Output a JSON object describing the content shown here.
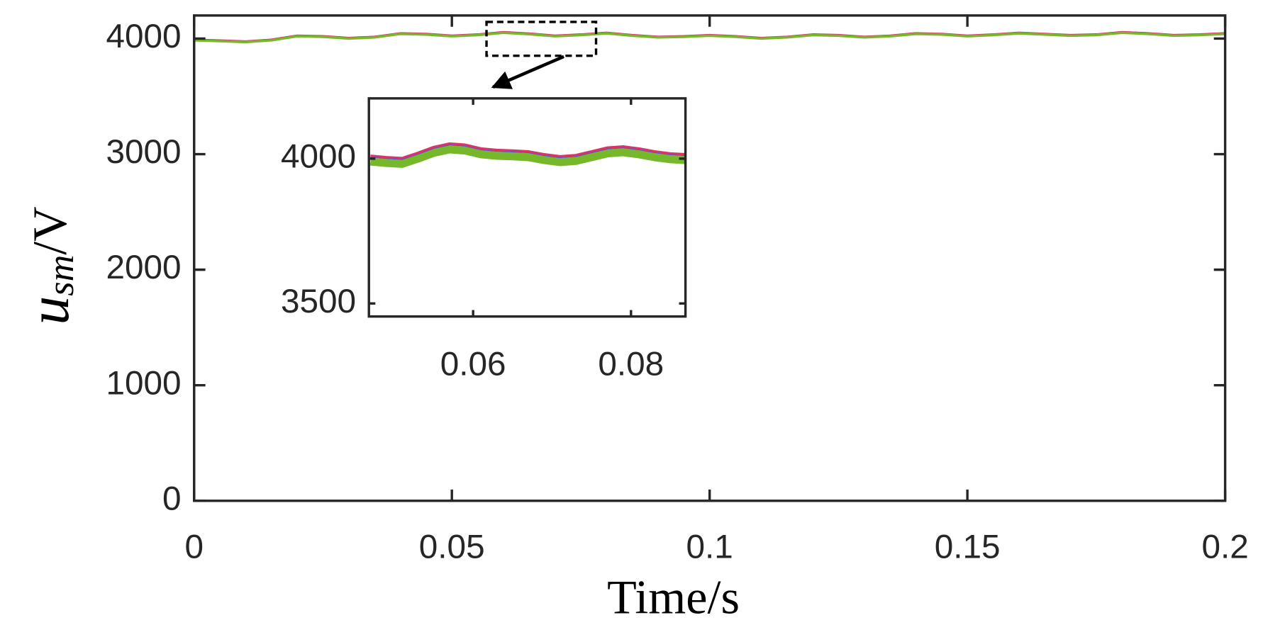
{
  "chart_data": [
    {
      "type": "line",
      "xlabel": "Time/s",
      "ylabel": {
        "main": "u",
        "sub": "sm",
        "suffix": "/V"
      },
      "xlim": [
        0,
        0.2
      ],
      "ylim": [
        0,
        4200
      ],
      "xticks": [
        0,
        0.05,
        0.1,
        0.15,
        0.2
      ],
      "yticks": [
        0,
        1000,
        2000,
        3000,
        4000
      ],
      "x": [
        0,
        0.005,
        0.01,
        0.015,
        0.02,
        0.025,
        0.03,
        0.035,
        0.04,
        0.045,
        0.05,
        0.055,
        0.06,
        0.065,
        0.07,
        0.075,
        0.08,
        0.085,
        0.09,
        0.095,
        0.1,
        0.105,
        0.11,
        0.115,
        0.12,
        0.125,
        0.13,
        0.135,
        0.14,
        0.145,
        0.15,
        0.155,
        0.16,
        0.165,
        0.17,
        0.175,
        0.18,
        0.185,
        0.19,
        0.195,
        0.2
      ],
      "series": [
        {
          "color": "#3b5bd9",
          "values": [
            3988,
            3981,
            3973,
            3988,
            4023,
            4018,
            4003,
            4013,
            4043,
            4038,
            4023,
            4033,
            4053,
            4041,
            4023,
            4033,
            4048,
            4028,
            4013,
            4018,
            4028,
            4018,
            4003,
            4013,
            4033,
            4028,
            4013,
            4023,
            4043,
            4038,
            4023,
            4033,
            4048,
            4038,
            4028,
            4033,
            4053,
            4043,
            4028,
            4033,
            4043
          ]
        },
        {
          "color": "#d9336b",
          "values": [
            3990,
            3983,
            3975,
            3990,
            4025,
            4020,
            4005,
            4015,
            4045,
            4040,
            4025,
            4035,
            4055,
            4043,
            4025,
            4035,
            4050,
            4030,
            4015,
            4020,
            4030,
            4020,
            4005,
            4015,
            4035,
            4030,
            4015,
            4025,
            4045,
            4040,
            4025,
            4035,
            4050,
            4040,
            4030,
            4035,
            4055,
            4045,
            4030,
            4035,
            4045
          ]
        },
        {
          "color": "#77b82a",
          "values": [
            3985,
            3978,
            3970,
            3985,
            4020,
            4015,
            4000,
            4010,
            4040,
            4035,
            4020,
            4030,
            4050,
            4038,
            4020,
            4030,
            4045,
            4025,
            4010,
            4015,
            4025,
            4015,
            4000,
            4010,
            4030,
            4025,
            4010,
            4020,
            4040,
            4035,
            4020,
            4030,
            4045,
            4035,
            4025,
            4030,
            4050,
            4040,
            4025,
            4030,
            4040
          ]
        }
      ]
    },
    {
      "type": "line",
      "xlim": [
        0.0468,
        0.0869
      ],
      "ylim": [
        3455,
        4208
      ],
      "xticks": [
        0.06,
        0.08
      ],
      "yticks": [
        3500,
        4000
      ],
      "x": [
        0.047,
        0.049,
        0.051,
        0.053,
        0.055,
        0.057,
        0.059,
        0.061,
        0.063,
        0.065,
        0.067,
        0.069,
        0.071,
        0.073,
        0.075,
        0.077,
        0.079,
        0.081,
        0.083,
        0.085,
        0.087
      ],
      "series": [
        {
          "color": "#77b82a",
          "width": 10,
          "values": [
            3990,
            3985,
            3982,
            4000,
            4020,
            4032,
            4028,
            4015,
            4010,
            4008,
            4005,
            3995,
            3988,
            3992,
            4005,
            4018,
            4022,
            4015,
            4005,
            3998,
            3995
          ]
        },
        {
          "color": "#3b5bd9",
          "width": 3,
          "values": [
            4008,
            4003,
            4000,
            4018,
            4038,
            4050,
            4046,
            4033,
            4028,
            4026,
            4023,
            4013,
            4006,
            4010,
            4023,
            4036,
            4040,
            4033,
            4023,
            4016,
            4013
          ]
        },
        {
          "color": "#d9336b",
          "width": 3,
          "values": [
            4010,
            4005,
            4002,
            4020,
            4040,
            4052,
            4048,
            4035,
            4030,
            4028,
            4025,
            4015,
            4008,
            4012,
            4025,
            4038,
            4042,
            4035,
            4025,
            4018,
            4015
          ]
        }
      ]
    }
  ]
}
